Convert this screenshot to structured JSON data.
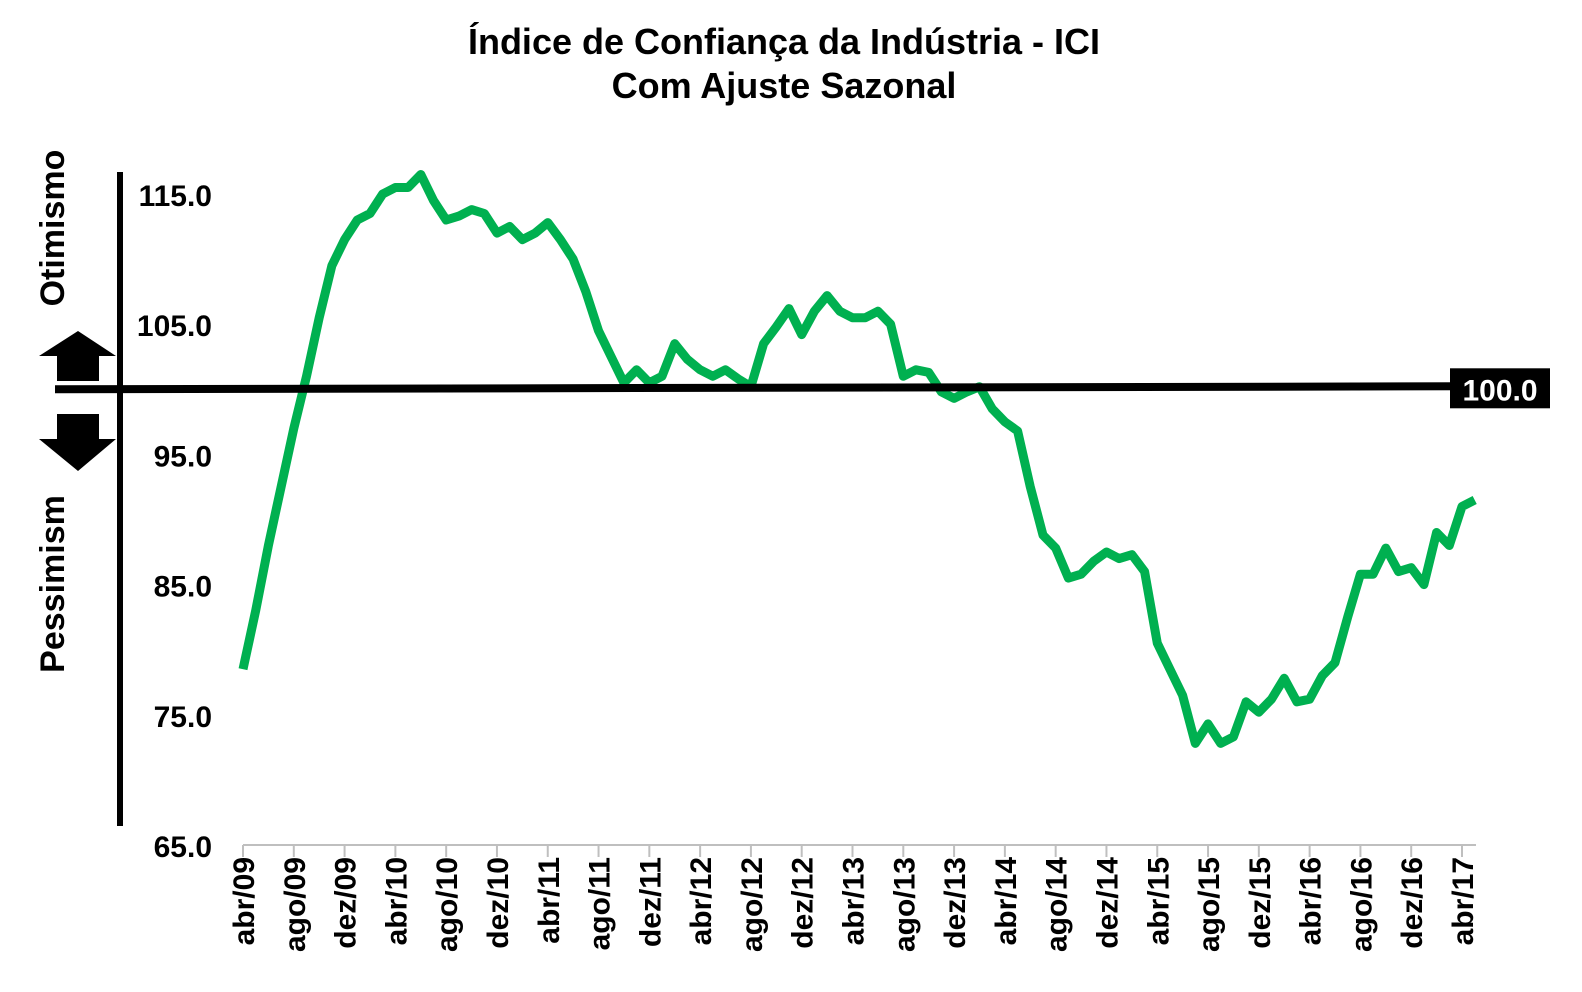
{
  "chart_data": {
    "type": "line",
    "title": "Índice de Confiança da Indústria - ICI",
    "subtitle": "Com Ajuste Sazonal",
    "side_labels": {
      "top": "Otimismo",
      "bottom": "Pessimism"
    },
    "reference": {
      "value": 100.0,
      "label": "100.0"
    },
    "ylim": [
      65,
      116
    ],
    "y_ticks": [
      {
        "value": 65,
        "label": "65.0"
      },
      {
        "value": 75,
        "label": "75.0"
      },
      {
        "value": 85,
        "label": "85.0"
      },
      {
        "value": 95,
        "label": "95.0"
      },
      {
        "value": 105,
        "label": "105.0"
      },
      {
        "value": 115,
        "label": "115.0"
      }
    ],
    "x_ticks": [
      {
        "index": 0,
        "label": "abr/09"
      },
      {
        "index": 4,
        "label": "ago/09"
      },
      {
        "index": 8,
        "label": "dez/09"
      },
      {
        "index": 12,
        "label": "abr/10"
      },
      {
        "index": 16,
        "label": "ago/10"
      },
      {
        "index": 20,
        "label": "dez/10"
      },
      {
        "index": 24,
        "label": "abr/11"
      },
      {
        "index": 28,
        "label": "ago/11"
      },
      {
        "index": 32,
        "label": "dez/11"
      },
      {
        "index": 36,
        "label": "abr/12"
      },
      {
        "index": 40,
        "label": "ago/12"
      },
      {
        "index": 44,
        "label": "dez/12"
      },
      {
        "index": 48,
        "label": "abr/13"
      },
      {
        "index": 52,
        "label": "ago/13"
      },
      {
        "index": 56,
        "label": "dez/13"
      },
      {
        "index": 60,
        "label": "abr/14"
      },
      {
        "index": 64,
        "label": "ago/14"
      },
      {
        "index": 68,
        "label": "dez/14"
      },
      {
        "index": 72,
        "label": "abr/15"
      },
      {
        "index": 76,
        "label": "ago/15"
      },
      {
        "index": 80,
        "label": "dez/15"
      },
      {
        "index": 84,
        "label": "abr/16"
      },
      {
        "index": 88,
        "label": "ago/16"
      },
      {
        "index": 92,
        "label": "dez/16"
      },
      {
        "index": 96,
        "label": "abr/17"
      }
    ],
    "series": [
      {
        "color": "#00b050",
        "values": [
          78.5,
          83.0,
          88.0,
          92.5,
          97.0,
          101.0,
          105.5,
          109.5,
          111.5,
          113.0,
          113.5,
          115.0,
          115.5,
          115.5,
          116.5,
          114.5,
          113.0,
          113.3,
          113.8,
          113.5,
          112.0,
          112.5,
          111.5,
          112.0,
          112.8,
          111.5,
          110.0,
          107.5,
          104.5,
          102.5,
          100.5,
          101.5,
          100.5,
          101.0,
          103.5,
          102.3,
          101.5,
          101.0,
          101.5,
          100.8,
          100.2,
          103.5,
          104.8,
          106.2,
          104.2,
          106.0,
          107.2,
          106.0,
          105.5,
          105.5,
          106.0,
          105.0,
          101.0,
          101.5,
          101.3,
          99.8,
          99.3,
          99.8,
          100.2,
          98.5,
          97.5,
          96.8,
          92.5,
          88.8,
          87.8,
          85.5,
          85.8,
          86.8,
          87.5,
          87.0,
          87.3,
          86.0,
          80.5,
          78.5,
          76.5,
          72.8,
          74.3,
          72.8,
          73.3,
          76.0,
          75.2,
          76.2,
          77.8,
          76.0,
          76.2,
          78.0,
          79.0,
          82.5,
          85.8,
          85.8,
          87.8,
          86.0,
          86.3,
          85.0,
          89.0,
          88.0,
          91.0,
          91.5
        ]
      }
    ]
  }
}
